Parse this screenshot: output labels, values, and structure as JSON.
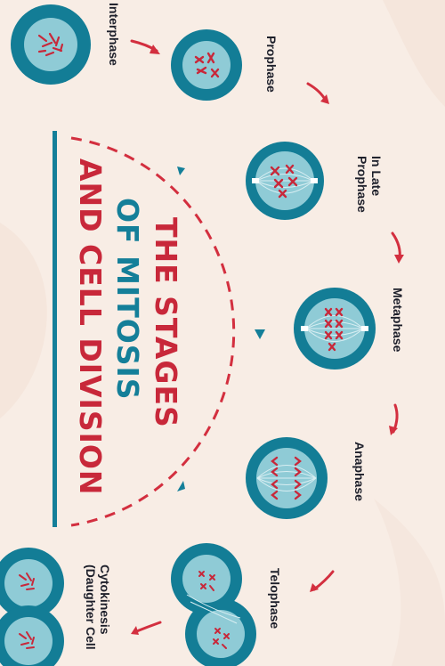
{
  "title": {
    "line1": "THE STAGES",
    "line2": "OF MITOSIS",
    "line3": "AND CELL DIVISION"
  },
  "stages": [
    {
      "label": "Interphase"
    },
    {
      "label": "Prophase"
    },
    {
      "label": "In Late\nProphase"
    },
    {
      "label": "Metaphase"
    },
    {
      "label": "Anaphase"
    },
    {
      "label": "Telophase"
    },
    {
      "label": "Cytokinesis\n(Daughter Cell"
    }
  ],
  "colors": {
    "background": "#f8ede5",
    "cell_outer": "#137d96",
    "cell_inner": "#8fcbd6",
    "chromosome": "#c8283a",
    "arrow": "#d32f3f",
    "title_red": "#c8283a",
    "title_blue": "#147f99"
  }
}
